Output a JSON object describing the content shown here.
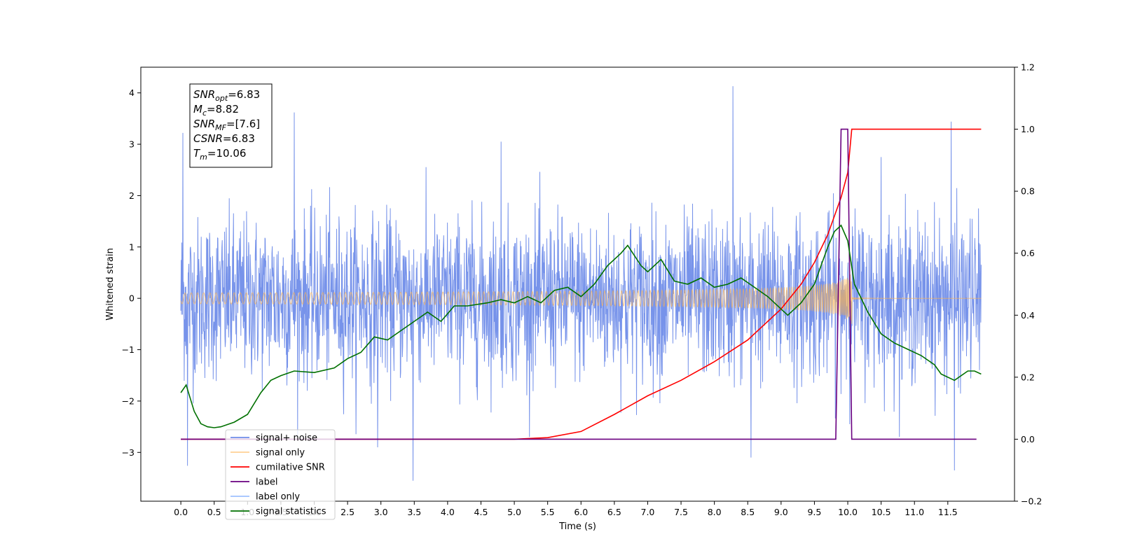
{
  "chart_data": {
    "type": "line",
    "xlabel": "Time (s)",
    "ylabel": "Whitened strain",
    "x_ticks": [
      "0.0",
      "0.5",
      "1.0",
      "1.5",
      "2.0",
      "2.5",
      "3.0",
      "3.5",
      "4.0",
      "4.5",
      "5.0",
      "5.5",
      "6.0",
      "6.5",
      "7.0",
      "7.5",
      "8.0",
      "8.5",
      "9.0",
      "9.5",
      "10.0",
      "10.5",
      "11.0",
      "11.5"
    ],
    "y_left_ticks": [
      "4",
      "3",
      "2",
      "1",
      "0",
      "−1",
      "−2",
      "−3"
    ],
    "y_right_ticks": [
      "1.2",
      "1.0",
      "0.8",
      "0.6",
      "0.4",
      "0.2",
      "0.0",
      "−0.2"
    ],
    "xlim": [
      -0.6,
      12.5
    ],
    "ylim_left": [
      -3.95,
      4.5
    ],
    "ylim_right": [
      -0.2,
      1.2
    ],
    "legend_position": "lower-left",
    "annotation": {
      "lines": [
        {
          "base": "SNR",
          "sub": "opt",
          "value": "=6.83"
        },
        {
          "base": "M",
          "sub": "c",
          "value": "=8.82"
        },
        {
          "base": "SNR",
          "sub": "MF",
          "value": "=[7.6]"
        },
        {
          "base": "CSNR",
          "sub": "",
          "value": "=6.83"
        },
        {
          "base": "T",
          "sub": "m",
          "value": "=10.06"
        }
      ]
    },
    "series": [
      {
        "name": "signal+ noise",
        "color": "#4a6fe3",
        "axis": "left",
        "kind": "noise",
        "x_range": [
          0.0,
          12.0
        ],
        "typical_amplitude": 1.6,
        "peaks": [
          [
            0.03,
            3.22
          ],
          [
            0.1,
            -3.26
          ],
          [
            1.7,
            3.62
          ],
          [
            2.95,
            -2.9
          ],
          [
            3.48,
            -3.55
          ],
          [
            4.8,
            3.05
          ],
          [
            8.28,
            4.13
          ],
          [
            8.55,
            -3.1
          ],
          [
            10.5,
            2.75
          ],
          [
            11.55,
            3.44
          ],
          [
            11.6,
            -3.35
          ]
        ]
      },
      {
        "name": "signal only",
        "color": "#ffb34d",
        "axis": "left",
        "kind": "chirp",
        "x_range": [
          0.0,
          12.0
        ],
        "merger_time": 10.06,
        "peak_amplitude": 0.5
      },
      {
        "name": "cumilative SNR",
        "color": "#ff0000",
        "axis": "right",
        "x": [
          0.0,
          1.0,
          2.0,
          3.0,
          4.0,
          5.0,
          5.5,
          6.0,
          6.5,
          7.0,
          7.5,
          8.0,
          8.5,
          9.0,
          9.3,
          9.5,
          9.7,
          9.9,
          10.0,
          10.06,
          10.1,
          11.0,
          12.0
        ],
        "values": [
          0.0,
          0.0,
          0.0,
          0.0,
          0.0,
          0.0,
          0.005,
          0.025,
          0.08,
          0.14,
          0.19,
          0.25,
          0.32,
          0.42,
          0.5,
          0.57,
          0.66,
          0.78,
          0.86,
          1.0,
          1.0,
          1.0,
          1.0
        ]
      },
      {
        "name": "label",
        "color": "#6a0080",
        "axis": "right",
        "x": [
          0.0,
          9.82,
          9.9,
          10.0,
          10.06,
          11.93
        ],
        "values": [
          0.0,
          0.0,
          1.0,
          1.0,
          0.0,
          0.0
        ]
      },
      {
        "name": "label only",
        "color": "#9fc0ff",
        "axis": "right",
        "x": [],
        "values": []
      },
      {
        "name": "signal statistics",
        "color": "#007000",
        "axis": "right",
        "x": [
          0.0,
          0.08,
          0.2,
          0.3,
          0.4,
          0.5,
          0.6,
          0.8,
          1.0,
          1.2,
          1.35,
          1.5,
          1.7,
          2.0,
          2.3,
          2.5,
          2.7,
          2.9,
          3.1,
          3.3,
          3.5,
          3.7,
          3.9,
          4.1,
          4.3,
          4.6,
          4.8,
          5.0,
          5.2,
          5.4,
          5.6,
          5.8,
          6.0,
          6.2,
          6.4,
          6.6,
          6.7,
          6.9,
          7.0,
          7.2,
          7.4,
          7.6,
          7.8,
          8.0,
          8.2,
          8.4,
          8.6,
          8.8,
          9.0,
          9.1,
          9.3,
          9.5,
          9.6,
          9.7,
          9.8,
          9.9,
          10.0,
          10.1,
          10.3,
          10.5,
          10.7,
          10.9,
          11.1,
          11.3,
          11.4,
          11.6,
          11.8,
          11.9,
          12.0
        ],
        "values": [
          0.15,
          0.175,
          0.09,
          0.05,
          0.04,
          0.037,
          0.04,
          0.055,
          0.08,
          0.15,
          0.19,
          0.205,
          0.22,
          0.215,
          0.23,
          0.26,
          0.28,
          0.33,
          0.32,
          0.35,
          0.38,
          0.41,
          0.38,
          0.43,
          0.43,
          0.44,
          0.45,
          0.44,
          0.46,
          0.44,
          0.48,
          0.49,
          0.46,
          0.5,
          0.56,
          0.6,
          0.625,
          0.56,
          0.54,
          0.58,
          0.51,
          0.5,
          0.52,
          0.49,
          0.5,
          0.52,
          0.49,
          0.46,
          0.42,
          0.4,
          0.44,
          0.5,
          0.56,
          0.62,
          0.67,
          0.69,
          0.64,
          0.5,
          0.41,
          0.34,
          0.31,
          0.29,
          0.27,
          0.24,
          0.21,
          0.19,
          0.22,
          0.22,
          0.21
        ]
      }
    ]
  }
}
